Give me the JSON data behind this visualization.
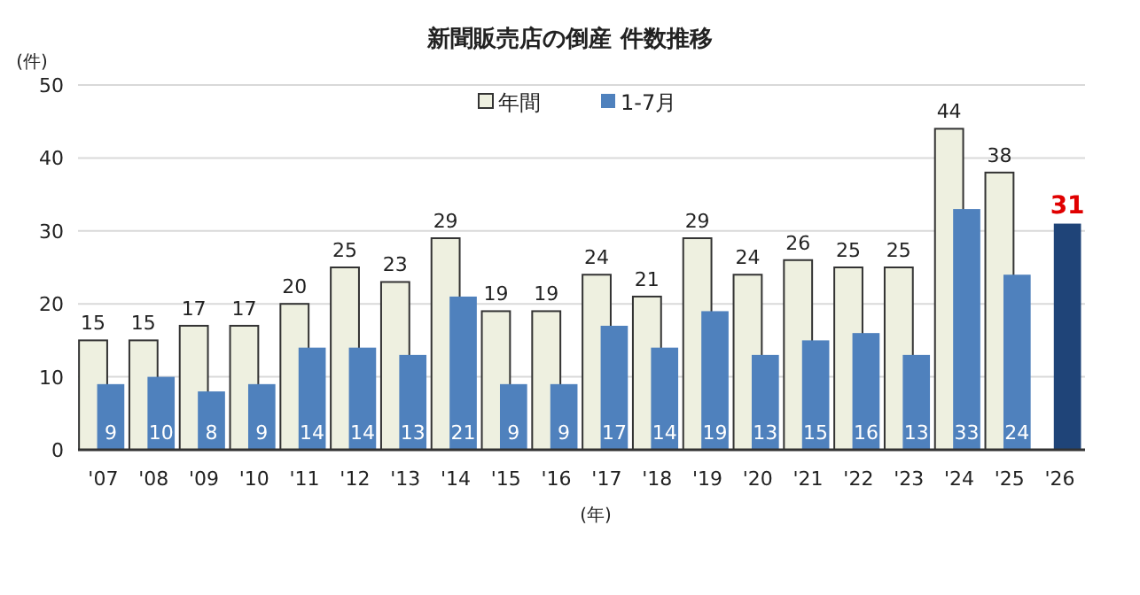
{
  "chart_data": {
    "type": "bar",
    "title": "新聞販売店の倒産  件数推移",
    "ylabel": "(件)",
    "xlabel": "(年)",
    "categories": [
      "'07",
      "'08",
      "'09",
      "'10",
      "'11",
      "'12",
      "'13",
      "'14",
      "'15",
      "'16",
      "'17",
      "'18",
      "'19",
      "'20",
      "'21",
      "'22",
      "'23",
      "'24",
      "'25",
      "'26"
    ],
    "series": [
      {
        "name": "年間",
        "color": "#eef0e0",
        "values": [
          15,
          15,
          17,
          17,
          20,
          25,
          23,
          29,
          19,
          19,
          24,
          21,
          29,
          24,
          26,
          25,
          25,
          44,
          38,
          null
        ]
      },
      {
        "name": "1-7月",
        "color": "#4f81bd",
        "colors": [
          "#4f81bd",
          "#4f81bd",
          "#4f81bd",
          "#4f81bd",
          "#4f81bd",
          "#4f81bd",
          "#4f81bd",
          "#4f81bd",
          "#4f81bd",
          "#4f81bd",
          "#4f81bd",
          "#4f81bd",
          "#4f81bd",
          "#4f81bd",
          "#4f81bd",
          "#4f81bd",
          "#4f81bd",
          "#4f81bd",
          "#4f81bd",
          "#1f4478"
        ],
        "values": [
          9,
          10,
          8,
          9,
          14,
          14,
          13,
          21,
          9,
          9,
          17,
          14,
          19,
          13,
          15,
          16,
          13,
          33,
          24,
          31
        ]
      }
    ],
    "ylim": [
      0,
      50
    ],
    "yticks": [
      0,
      10,
      20,
      30,
      40,
      50
    ],
    "grid": "y",
    "legend": "top",
    "data_labels": true
  }
}
